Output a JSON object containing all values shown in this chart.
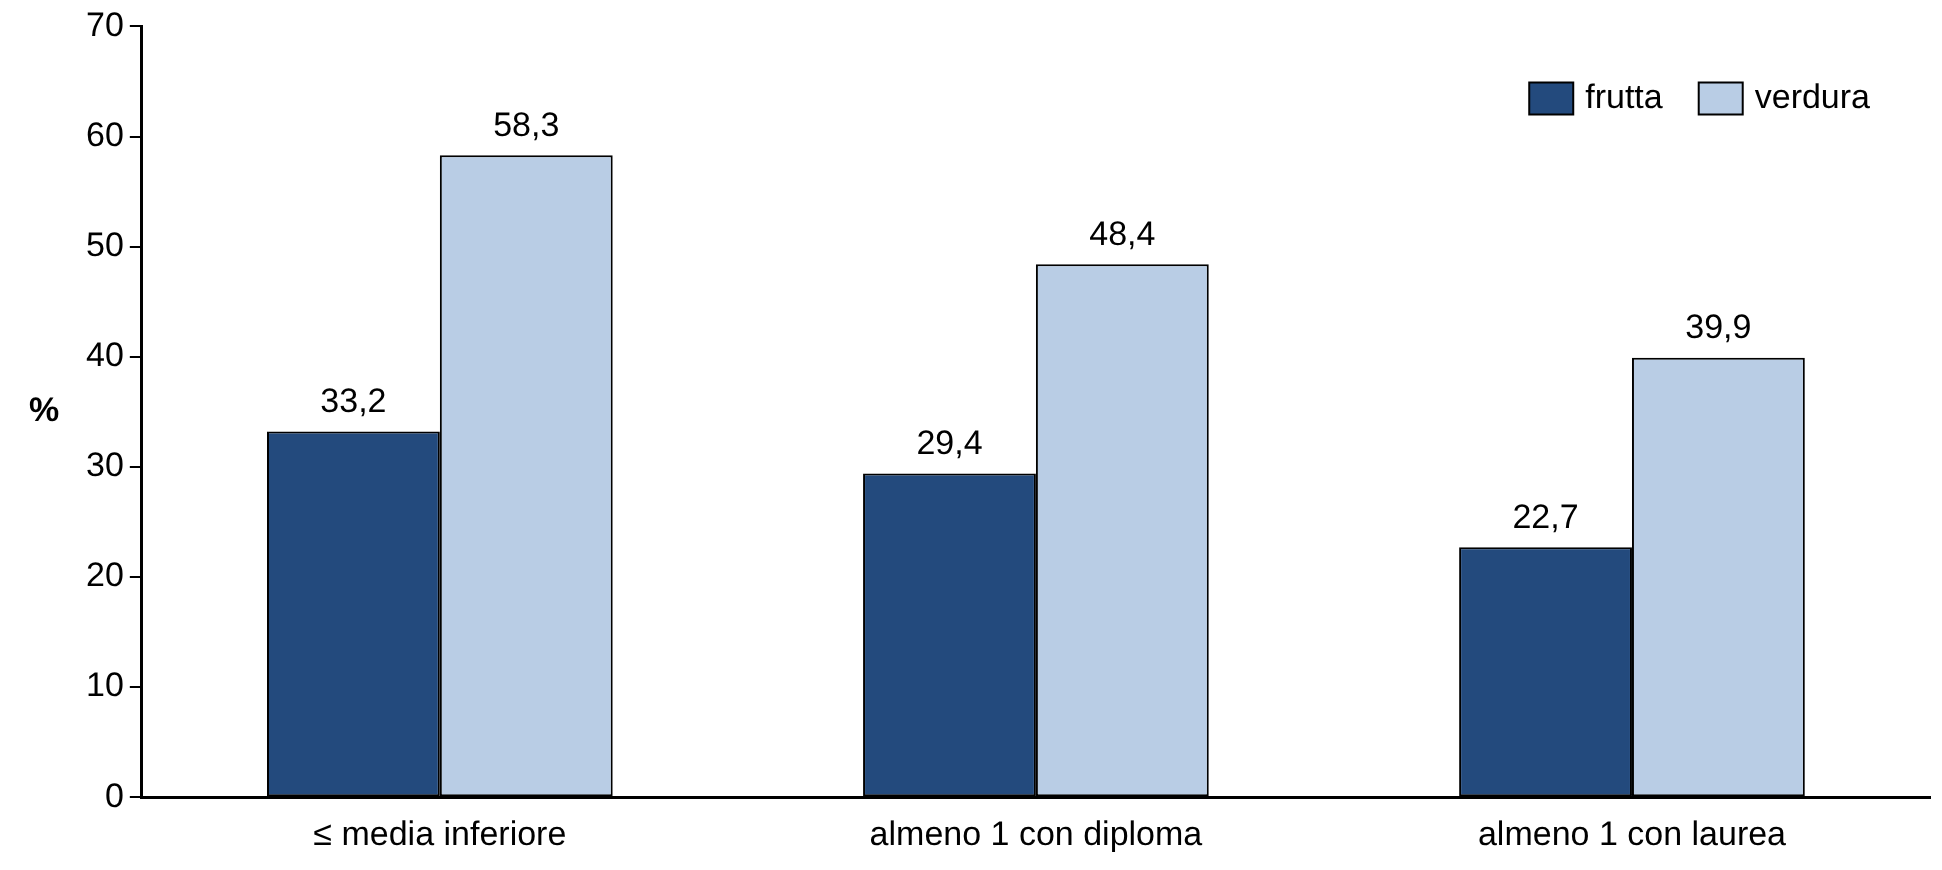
{
  "chart_data": {
    "type": "bar",
    "ylabel": "%",
    "categories": [
      "≤ media inferiore",
      "almeno 1 con diploma",
      "almeno 1 con laurea"
    ],
    "series": [
      {
        "name": "frutta",
        "color": "#234a7d",
        "values": [
          33.2,
          29.4,
          22.7
        ],
        "value_labels": [
          "33,2",
          "29,4",
          "22,7"
        ]
      },
      {
        "name": "verdura",
        "color": "#b9cde5",
        "values": [
          58.3,
          48.4,
          39.9
        ],
        "value_labels": [
          "58,3",
          "48,4",
          "39,9"
        ]
      }
    ],
    "ylim": [
      0,
      70
    ],
    "yticks": [
      0,
      10,
      20,
      30,
      40,
      50,
      60,
      70
    ],
    "grid": false,
    "legend": "top right"
  }
}
